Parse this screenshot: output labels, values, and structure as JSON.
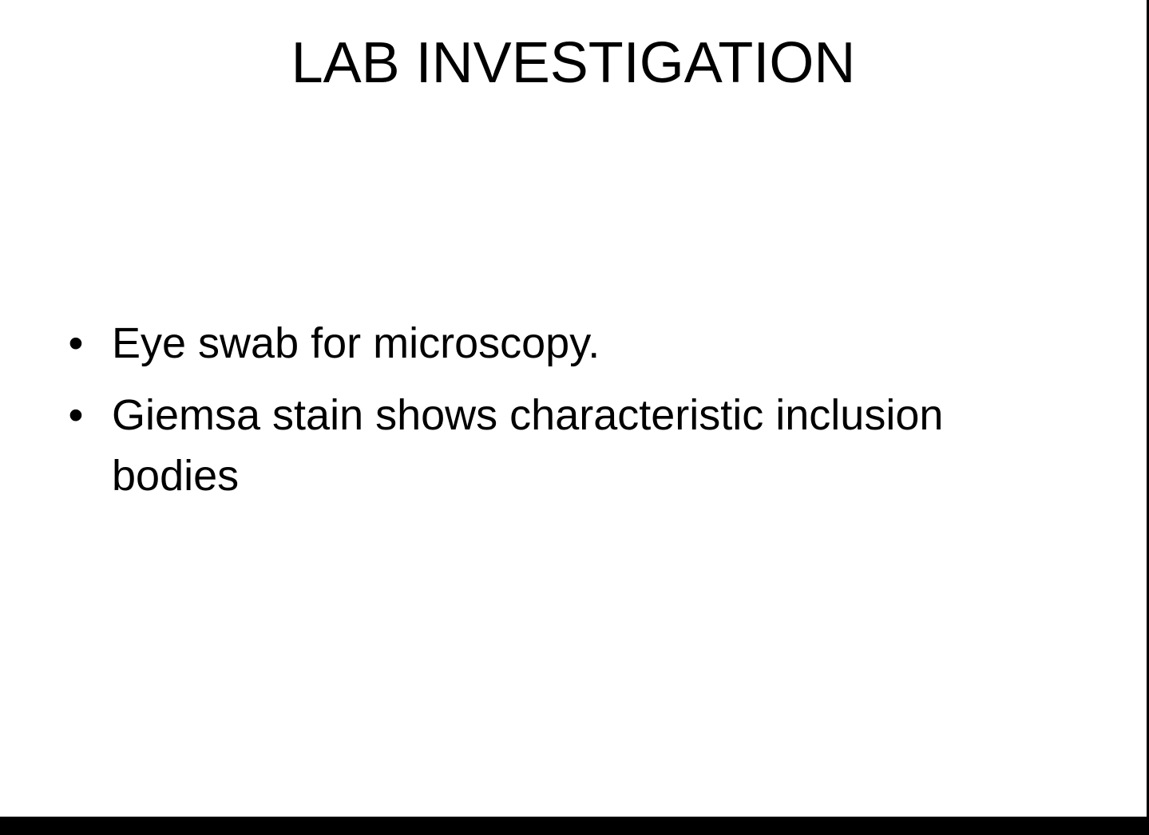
{
  "slide": {
    "title": "LAB INVESTIGATION",
    "bullets": [
      {
        "text": "Eye swab for microscopy."
      },
      {
        "text": "Giemsa stain shows characteristic inclusion bodies"
      }
    ],
    "bullet_glyph": "•"
  },
  "colors": {
    "background": "#ffffff",
    "text": "#000000",
    "frame": "#000000"
  }
}
